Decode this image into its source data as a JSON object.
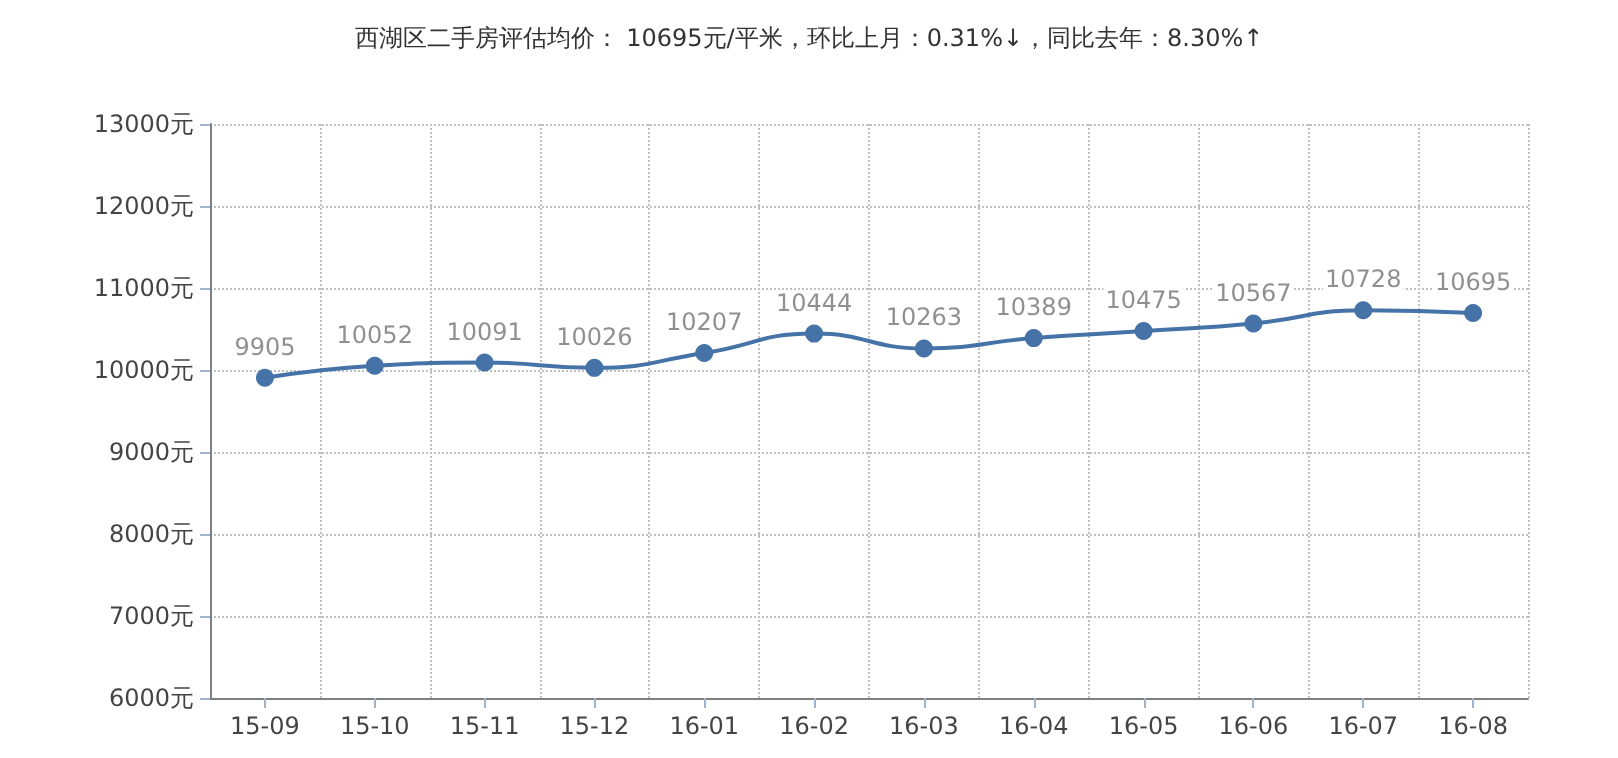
{
  "chart_data": {
    "type": "line",
    "title": "西湖区二手房评估均价： 10695元/平米，环比上月：0.31%↓，同比去年：8.30%↑",
    "categories": [
      "15-09",
      "15-10",
      "15-11",
      "15-12",
      "16-01",
      "16-02",
      "16-03",
      "16-04",
      "16-05",
      "16-06",
      "16-07",
      "16-08"
    ],
    "series": [
      {
        "color": "#4572a7",
        "values": [
          9905,
          10052,
          10091,
          10026,
          10207,
          10444,
          10263,
          10389,
          10475,
          10567,
          10728,
          10695
        ]
      }
    ],
    "ylim": [
      6000,
      13000
    ],
    "yticks": [
      {
        "value": 6000,
        "label": "6000元"
      },
      {
        "value": 7000,
        "label": "7000元"
      },
      {
        "value": 8000,
        "label": "8000元"
      },
      {
        "value": 9000,
        "label": "9000元"
      },
      {
        "value": 10000,
        "label": "10000元"
      },
      {
        "value": 11000,
        "label": "11000元"
      },
      {
        "value": 12000,
        "label": "12000元"
      },
      {
        "value": 13000,
        "label": "13000元"
      }
    ],
    "grid": true,
    "marker": "circle",
    "line_style": "solid",
    "data_labels": true
  }
}
